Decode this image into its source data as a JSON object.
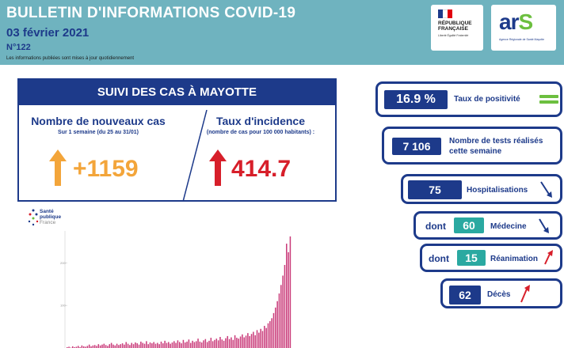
{
  "header": {
    "title": "BULLETIN D'INFORMATIONS COVID-19",
    "date": "03 février 2021",
    "number": "N°122",
    "note": "Les informations publiées sont mises à jour quotidiennement"
  },
  "logos": {
    "rf_name": "RÉPUBLIQUE FRANÇAISE",
    "rf_motto": "Liberté Égalité Fraternité",
    "ars_word": "ar",
    "ars_s": "S",
    "ars_sub": "Agence Régionale de Santé Mayotte"
  },
  "cases": {
    "header": "SUIVI DES CAS À MAYOTTE",
    "new_cases": {
      "title": "Nombre de nouveaux cas",
      "subtitle": "Sur 1 semaine (du 25 au 31/01)",
      "value": "+1159",
      "trend": "up",
      "color": "#f3a53a"
    },
    "incidence": {
      "title": "Taux d'incidence",
      "subtitle": "(nombre de cas pour 100 000 habitants) :",
      "value": "414.7",
      "trend": "up",
      "color": "#d71f2a"
    }
  },
  "indicators": {
    "positivity": {
      "value": "16.9 %",
      "label": "Taux de positivité",
      "trend": "stable"
    },
    "tests": {
      "value": "7 106",
      "label_1": "Nombre de tests réalisés",
      "label_2": "cette semaine"
    },
    "hospital": {
      "value": "75",
      "label": "Hospitalisations",
      "trend": "down"
    },
    "medecine": {
      "prefix": "dont",
      "value": "60",
      "label": "Médecine",
      "trend": "down"
    },
    "reanimation": {
      "prefix": "dont",
      "value": "15",
      "label": "Réanimation",
      "trend": "up"
    },
    "deces": {
      "value": "62",
      "label": "Décès",
      "trend": "up"
    }
  },
  "source_logo": {
    "line1": "Santé",
    "line2": "publique",
    "line3": "France"
  },
  "colors": {
    "navy": "#1d3a8a",
    "teal_header": "#6fb3bf",
    "teal_badge": "#2aa9a1",
    "orange": "#f3a53a",
    "red": "#d71f2a",
    "green": "#6cbf3f",
    "bar": "#c93a79"
  },
  "chart_data": {
    "type": "bar",
    "title": "",
    "xlabel": "",
    "ylabel": "",
    "y_ticks": [
      "200",
      "100"
    ],
    "ylim": [
      0,
      260
    ],
    "values": [
      2,
      3,
      1,
      4,
      2,
      3,
      5,
      2,
      6,
      4,
      3,
      5,
      8,
      4,
      6,
      7,
      5,
      9,
      6,
      8,
      10,
      7,
      5,
      9,
      12,
      8,
      6,
      10,
      7,
      9,
      11,
      8,
      14,
      10,
      7,
      12,
      9,
      13,
      11,
      8,
      15,
      12,
      10,
      16,
      9,
      13,
      11,
      14,
      10,
      12,
      9,
      15,
      11,
      17,
      12,
      14,
      10,
      13,
      16,
      12,
      18,
      14,
      11,
      19,
      13,
      15,
      20,
      12,
      17,
      14,
      16,
      22,
      15,
      13,
      18,
      21,
      14,
      17,
      24,
      16,
      19,
      22,
      18,
      26,
      20,
      17,
      23,
      28,
      21,
      25,
      19,
      30,
      24,
      22,
      27,
      32,
      25,
      29,
      35,
      28,
      33,
      38,
      30,
      42,
      36,
      45,
      40,
      52,
      47,
      58,
      63,
      70,
      82,
      95,
      110,
      128,
      148,
      170,
      195,
      245,
      225,
      262
    ]
  }
}
